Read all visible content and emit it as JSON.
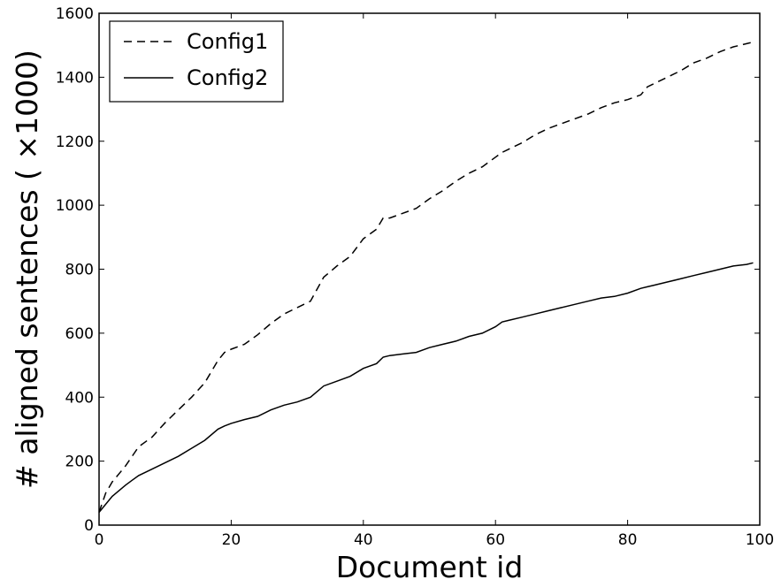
{
  "chart_data": {
    "type": "line",
    "title": "",
    "xlabel": "Document id",
    "ylabel": "# aligned sentences ( ×1000)",
    "xlim": [
      0,
      100
    ],
    "ylim": [
      0,
      1600
    ],
    "xticks": [
      0,
      20,
      40,
      60,
      80,
      100
    ],
    "yticks": [
      0,
      200,
      400,
      600,
      800,
      1000,
      1200,
      1400,
      1600
    ],
    "grid": false,
    "legend_position": "top-left",
    "series": [
      {
        "name": "Config1",
        "style": "dashed",
        "color": "#000000",
        "x": [
          0,
          1,
          2,
          4,
          6,
          8,
          10,
          12,
          14,
          16,
          18,
          19,
          20,
          22,
          24,
          26,
          28,
          30,
          32,
          34,
          36,
          38,
          40,
          42,
          43,
          44,
          46,
          48,
          50,
          52,
          54,
          56,
          58,
          60,
          61,
          62,
          64,
          66,
          68,
          70,
          72,
          74,
          76,
          78,
          80,
          82,
          83,
          84,
          86,
          88,
          90,
          92,
          94,
          96,
          98,
          99
        ],
        "y": [
          40,
          100,
          135,
          185,
          245,
          275,
          320,
          360,
          400,
          445,
          515,
          540,
          550,
          565,
          595,
          630,
          660,
          680,
          700,
          775,
          810,
          840,
          895,
          925,
          960,
          960,
          975,
          990,
          1020,
          1045,
          1075,
          1100,
          1120,
          1150,
          1165,
          1175,
          1195,
          1220,
          1240,
          1255,
          1270,
          1285,
          1305,
          1320,
          1330,
          1345,
          1370,
          1380,
          1400,
          1420,
          1445,
          1460,
          1480,
          1495,
          1505,
          1510
        ]
      },
      {
        "name": "Config2",
        "style": "solid",
        "color": "#000000",
        "x": [
          0,
          2,
          4,
          5,
          6,
          8,
          10,
          12,
          14,
          16,
          18,
          19,
          20,
          22,
          24,
          26,
          28,
          30,
          32,
          34,
          36,
          38,
          40,
          42,
          43,
          44,
          46,
          48,
          50,
          52,
          54,
          56,
          58,
          60,
          61,
          62,
          64,
          66,
          68,
          70,
          72,
          74,
          76,
          78,
          80,
          82,
          83,
          84,
          86,
          88,
          90,
          92,
          94,
          96,
          98,
          99
        ],
        "y": [
          40,
          90,
          125,
          140,
          155,
          175,
          195,
          215,
          240,
          265,
          300,
          310,
          318,
          330,
          340,
          360,
          375,
          385,
          400,
          435,
          450,
          465,
          490,
          505,
          525,
          530,
          535,
          540,
          555,
          565,
          575,
          590,
          600,
          620,
          635,
          640,
          650,
          660,
          670,
          680,
          690,
          700,
          710,
          715,
          725,
          740,
          745,
          750,
          760,
          770,
          780,
          790,
          800,
          810,
          815,
          820
        ]
      }
    ]
  }
}
